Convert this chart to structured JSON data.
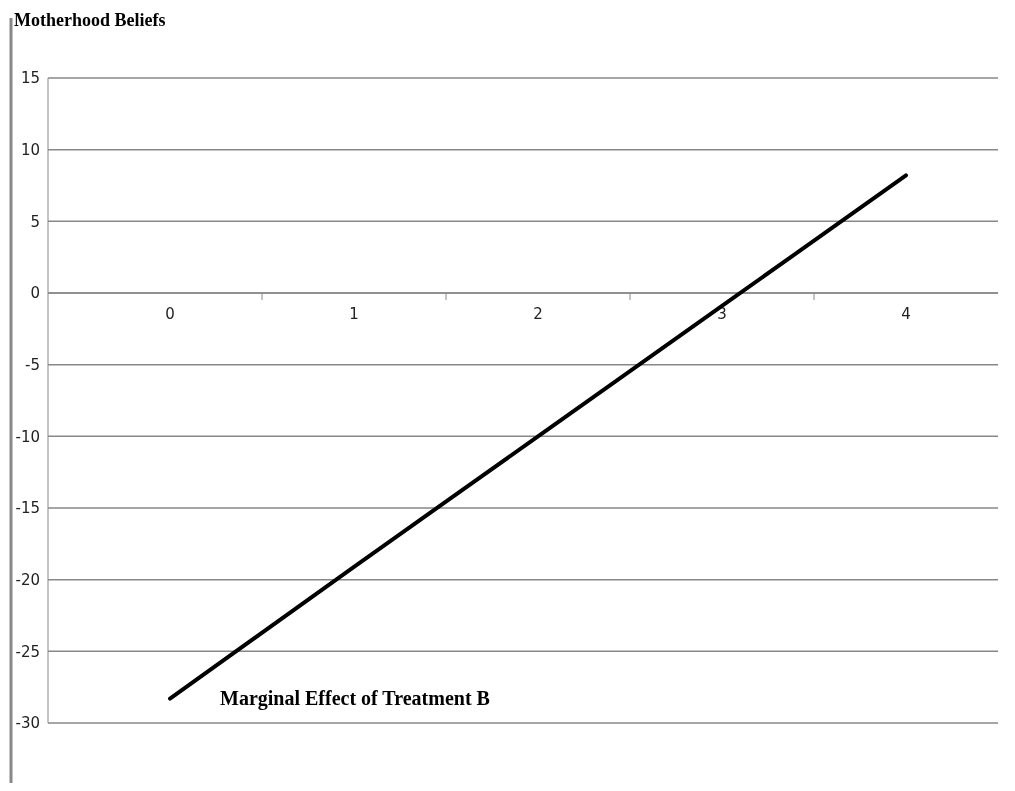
{
  "chart_data": {
    "type": "line",
    "title": "Motherhood Beliefs",
    "categories": [
      "0",
      "1",
      "2",
      "3",
      "4"
    ],
    "series": [
      {
        "color": "#000000",
        "values": [
          -28.3,
          -19.1,
          -10.0,
          -0.9,
          8.2
        ]
      }
    ],
    "ylim": [
      -30,
      15
    ],
    "yticks": [
      -30,
      -25,
      -20,
      -15,
      -10,
      -5,
      0,
      5,
      10,
      15
    ],
    "grid": "y",
    "marker": "none",
    "line_style": "solid",
    "annotations": [
      {
        "text": "Marginal Effect of Treatment B",
        "x": "0",
        "y": -28.3
      }
    ]
  }
}
